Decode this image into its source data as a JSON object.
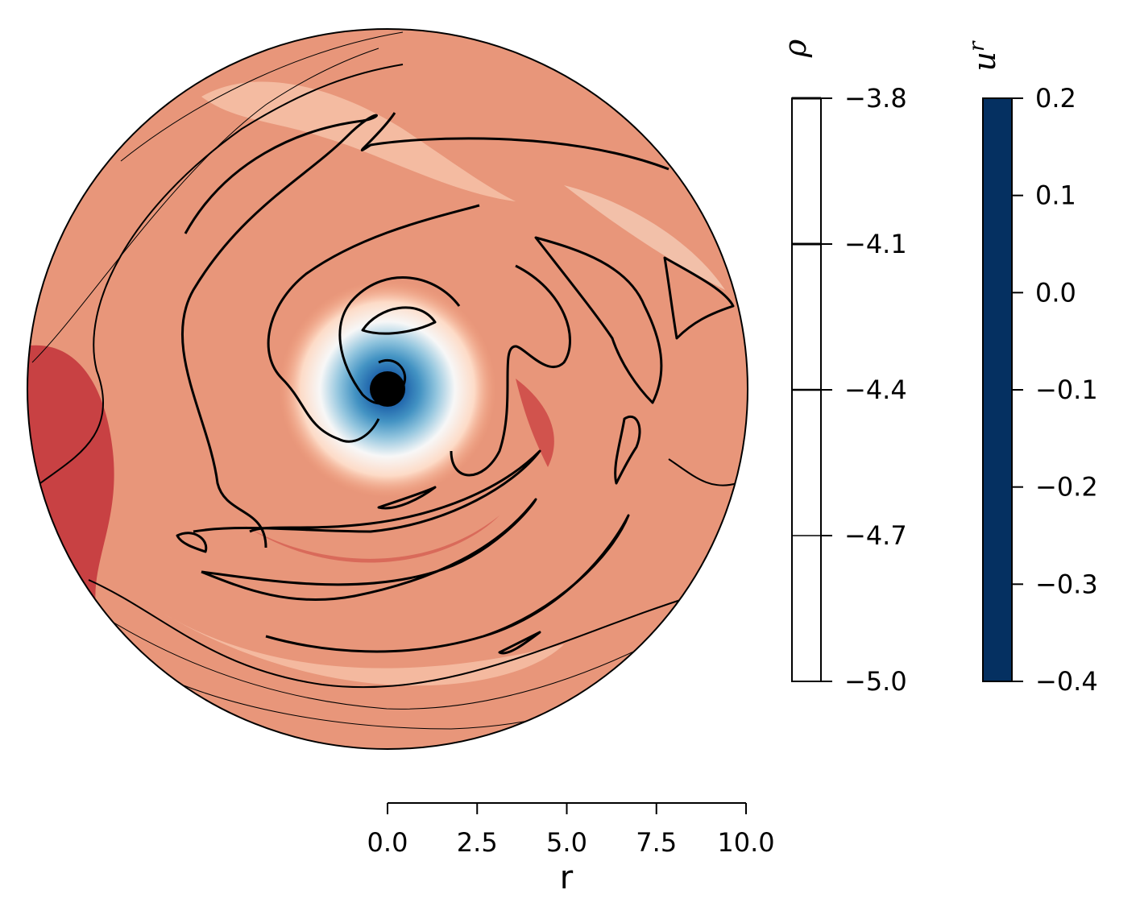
{
  "chart_data": {
    "type": "heatmap",
    "projection": "polar",
    "description_fields": {
      "color_field": "u^r",
      "contour_field": "rho"
    },
    "color_field": {
      "colormap": "RdBu_r",
      "range": [
        -0.4,
        0.2
      ],
      "colorbar_ticks": [
        "0.2",
        "0.1",
        "0.0",
        "−0.1",
        "−0.2",
        "−0.3",
        "−0.4"
      ],
      "colorbar_tick_values": [
        0.2,
        0.1,
        0.0,
        -0.1,
        -0.2,
        -0.3,
        -0.4
      ],
      "colorbar_title": "u",
      "colorbar_title_superscript": "r"
    },
    "contour_field": {
      "range": [
        -5.0,
        -3.8
      ],
      "levels": [
        -3.8,
        -4.1,
        -4.4,
        -4.7
      ],
      "colorbar_ticks": [
        "−3.8",
        "−4.1",
        "−4.4",
        "−4.7",
        "−5.0"
      ],
      "colorbar_tick_values": [
        -3.8,
        -4.1,
        -4.4,
        -4.7,
        -5.0
      ],
      "colorbar_title": "ρ",
      "line_color": "#000000"
    },
    "r_axis": {
      "label": "r",
      "range": [
        0,
        10
      ],
      "ticks": [
        "0.0",
        "2.5",
        "5.0",
        "7.5",
        "10.0"
      ],
      "tick_values": [
        0,
        2.5,
        5.0,
        7.5,
        10.0
      ]
    },
    "central_object": {
      "color": "#000000"
    },
    "colors": {
      "colormap_stops": [
        "#053061",
        "#2166ac",
        "#4393c3",
        "#92c5de",
        "#d1e5f0",
        "#f7f7f7",
        "#fddbc7",
        "#f4a582",
        "#d6604d",
        "#b2182b",
        "#67001f"
      ]
    }
  }
}
